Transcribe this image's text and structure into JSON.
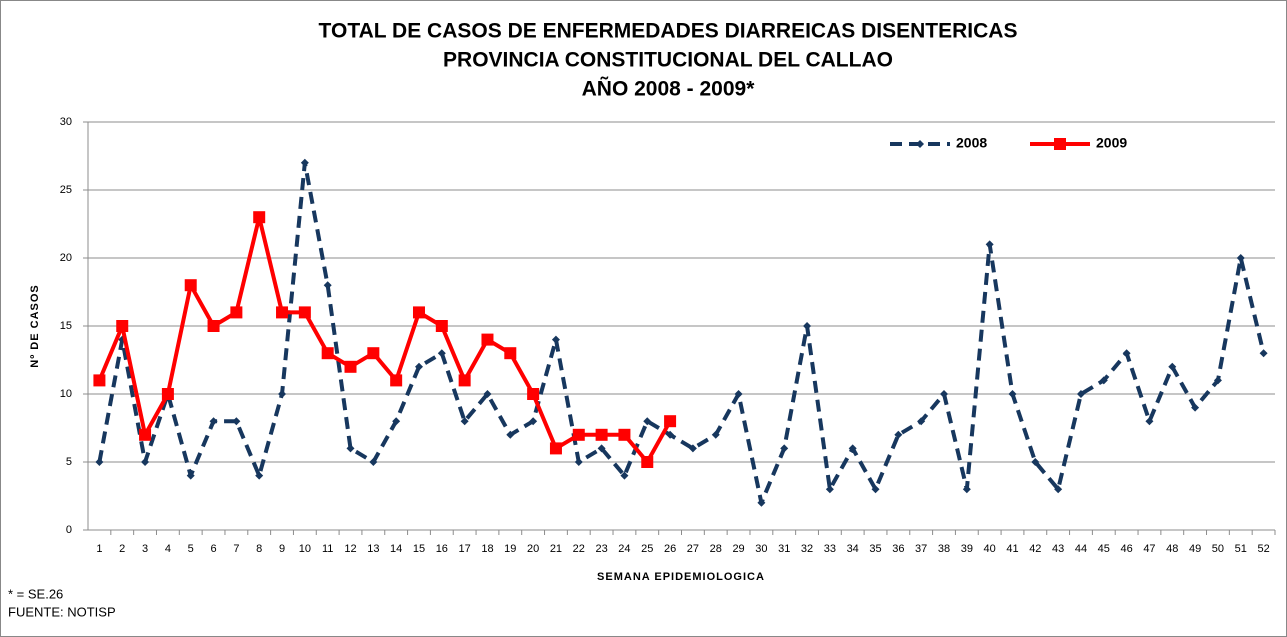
{
  "chart_data": {
    "type": "line",
    "title": [
      "TOTAL DE CASOS DE ENFERMEDADES DIARREICAS  DISENTERICAS",
      "PROVINCIA CONSTITUCIONAL DEL CALLAO",
      "AÑO 2008 - 2009*"
    ],
    "x_label": "SEMANA EPIDEMIOLOGICA",
    "y_label": "Nº DE CASOS",
    "notes": [
      "* = SE.26",
      "FUENTE: NOTISP"
    ],
    "categories": [
      "1",
      "2",
      "3",
      "4",
      "5",
      "6",
      "7",
      "8",
      "9",
      "10",
      "11",
      "12",
      "13",
      "14",
      "15",
      "16",
      "17",
      "18",
      "19",
      "20",
      "21",
      "22",
      "23",
      "24",
      "25",
      "26",
      "27",
      "28",
      "29",
      "30",
      "31",
      "32",
      "33",
      "34",
      "35",
      "36",
      "37",
      "38",
      "39",
      "40",
      "41",
      "42",
      "43",
      "44",
      "45",
      "46",
      "47",
      "48",
      "49",
      "50",
      "51",
      "52"
    ],
    "series": [
      {
        "name": "2008",
        "color": "#17375e",
        "dash": true,
        "marker": "diamond",
        "values": [
          5,
          14,
          5,
          10,
          4,
          8,
          8,
          4,
          10,
          27,
          18,
          6,
          5,
          8,
          12,
          13,
          8,
          10,
          7,
          8,
          14,
          5,
          6,
          4,
          8,
          7,
          6,
          7,
          10,
          2,
          6,
          15,
          3,
          6,
          3,
          7,
          8,
          10,
          3,
          21,
          10,
          5,
          3,
          10,
          11,
          13,
          8,
          12,
          9,
          11,
          20,
          13
        ]
      },
      {
        "name": "2009",
        "color": "#ff0000",
        "dash": false,
        "marker": "square",
        "values": [
          11,
          15,
          7,
          10,
          18,
          15,
          16,
          23,
          16,
          16,
          13,
          12,
          13,
          11,
          16,
          15,
          11,
          14,
          13,
          10,
          6,
          7,
          7,
          7,
          5,
          8,
          null,
          null,
          null,
          null,
          null,
          null,
          null,
          null,
          null,
          null,
          null,
          null,
          null,
          null,
          null,
          null,
          null,
          null,
          null,
          null,
          null,
          null,
          null,
          null,
          null,
          null
        ]
      }
    ],
    "ylim": [
      0,
      30
    ],
    "yticks": [
      0,
      5,
      10,
      15,
      20,
      25,
      30
    ],
    "grid": true,
    "legend": "top-right"
  }
}
